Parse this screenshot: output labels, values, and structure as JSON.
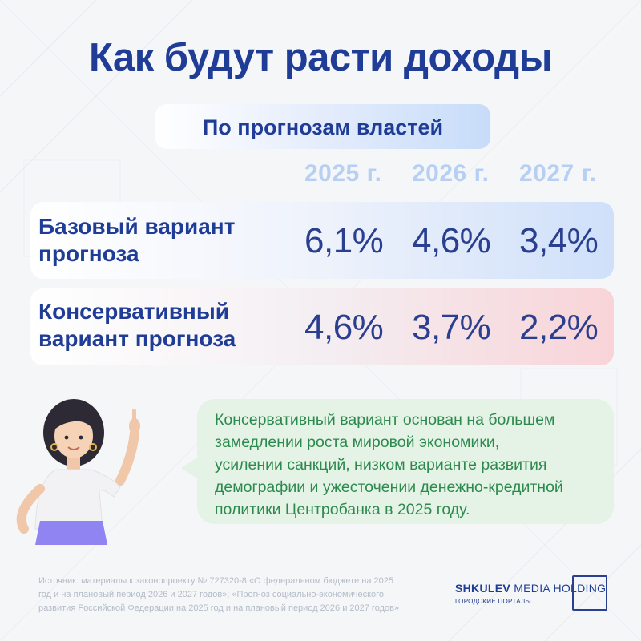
{
  "title": "Как будут расти доходы",
  "subtitle": "По прогнозам властей",
  "years": [
    "2025 г.",
    "2026 г.",
    "2027 г."
  ],
  "rows": [
    {
      "label_line1": "Базовый вариант",
      "label_line2": "прогноза",
      "values": [
        "6,1%",
        "4,6%",
        "3,4%"
      ]
    },
    {
      "label_line1": "Консервативный",
      "label_line2": "вариант прогноза",
      "values": [
        "4,6%",
        "3,7%",
        "2,2%"
      ]
    }
  ],
  "note": {
    "lines": [
      "Консервативный вариант основан на большем",
      "замедлении роста мировой экономики,",
      "усилении санкций, низком варианте развития",
      "демографии и ужесточении денежно-кредитной",
      "политики Центробанка в 2025 году."
    ]
  },
  "source": {
    "lines": [
      "Источник: материалы к законопроекту № 727320-8 «О федеральном бюджете на 2025",
      "год и на плановый период 2026 и 2027 годов»; «Прогноз социально-экономического",
      "развития Российской Федерации на 2025 год и на плановый период 2026 и 2027 годов»"
    ]
  },
  "logo": {
    "brand_bold": "SHKULEV",
    "brand_rest": " MEDIA HOLDING",
    "tagline": "ГОРОДСКИЕ ПОРТАЛЫ"
  },
  "colors": {
    "title": "#1f3d96",
    "year": "#b6cff3",
    "note_bg": "#e4f3e6",
    "note_text": "#2d8a4e"
  }
}
